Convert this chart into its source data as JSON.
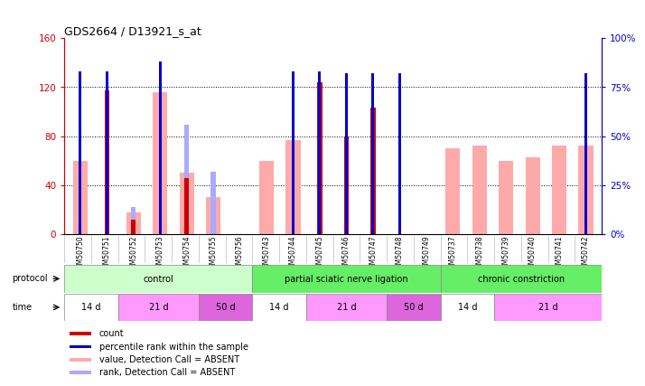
{
  "title": "GDS2664 / D13921_s_at",
  "samples": [
    "GSM50750",
    "GSM50751",
    "GSM50752",
    "GSM50753",
    "GSM50754",
    "GSM50755",
    "GSM50756",
    "GSM50743",
    "GSM50744",
    "GSM50745",
    "GSM50746",
    "GSM50747",
    "GSM50748",
    "GSM50749",
    "GSM50737",
    "GSM50738",
    "GSM50739",
    "GSM50740",
    "GSM50741",
    "GSM50742"
  ],
  "count_values": [
    0,
    117,
    12,
    0,
    46,
    0,
    0,
    0,
    0,
    124,
    80,
    103,
    0,
    0,
    0,
    0,
    0,
    0,
    0,
    0
  ],
  "rank_values": [
    83,
    83,
    0,
    88,
    0,
    0,
    0,
    0,
    83,
    83,
    82,
    82,
    82,
    0,
    0,
    0,
    0,
    0,
    0,
    82
  ],
  "absent_value": [
    60,
    0,
    18,
    116,
    50,
    30,
    0,
    60,
    77,
    0,
    0,
    0,
    0,
    0,
    70,
    72,
    60,
    63,
    72,
    72
  ],
  "absent_rank": [
    0,
    0,
    14,
    0,
    56,
    32,
    0,
    0,
    0,
    0,
    0,
    0,
    0,
    0,
    0,
    0,
    0,
    0,
    0,
    0
  ],
  "ylim_left": [
    0,
    160
  ],
  "ylim_right": [
    0,
    100
  ],
  "yticks_left": [
    0,
    40,
    80,
    120,
    160
  ],
  "yticks_right": [
    0,
    25,
    50,
    75,
    100
  ],
  "ytick_labels_left": [
    "0",
    "40",
    "80",
    "120",
    "160"
  ],
  "ytick_labels_right": [
    "0%",
    "25%",
    "50%",
    "75%",
    "100%"
  ],
  "color_count": "#cc0000",
  "color_rank": "#0000cc",
  "color_absent_value": "#ffaaaa",
  "color_absent_rank": "#aaaaff",
  "protocol_groups": [
    {
      "label": "control",
      "start": 0,
      "end": 6,
      "color": "#ccffcc"
    },
    {
      "label": "partial sciatic nerve ligation",
      "start": 7,
      "end": 13,
      "color": "#66ee66"
    },
    {
      "label": "chronic constriction",
      "start": 14,
      "end": 19,
      "color": "#66ee66"
    }
  ],
  "time_groups": [
    {
      "label": "14 d",
      "start": 0,
      "end": 1,
      "color": "#ffffff"
    },
    {
      "label": "21 d",
      "start": 2,
      "end": 4,
      "color": "#ff99ff"
    },
    {
      "label": "50 d",
      "start": 5,
      "end": 6,
      "color": "#dd66dd"
    },
    {
      "label": "14 d",
      "start": 7,
      "end": 8,
      "color": "#ffffff"
    },
    {
      "label": "21 d",
      "start": 9,
      "end": 11,
      "color": "#ff99ff"
    },
    {
      "label": "50 d",
      "start": 12,
      "end": 13,
      "color": "#dd66dd"
    },
    {
      "label": "14 d",
      "start": 14,
      "end": 15,
      "color": "#ffffff"
    },
    {
      "label": "21 d",
      "start": 16,
      "end": 19,
      "color": "#ff99ff"
    }
  ],
  "background_color": "#ffffff",
  "axis_color_left": "#cc0000",
  "axis_color_right": "#0000cc",
  "legend_labels": [
    "count",
    "percentile rank within the sample",
    "value, Detection Call = ABSENT",
    "rank, Detection Call = ABSENT"
  ],
  "legend_colors": [
    "#cc0000",
    "#0000cc",
    "#ffaaaa",
    "#aaaaff"
  ]
}
